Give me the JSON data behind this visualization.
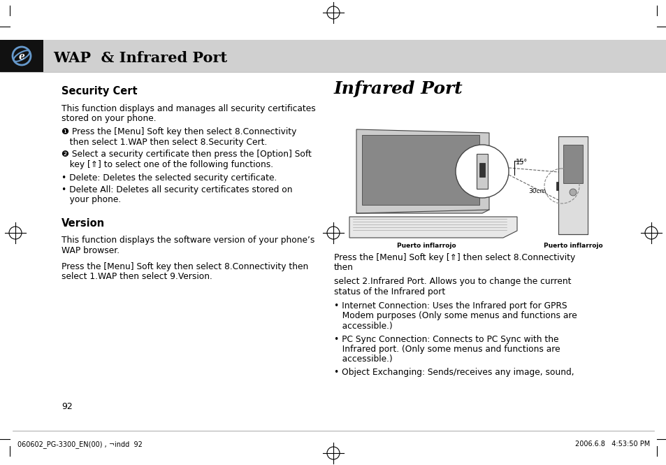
{
  "bg_color": "#ffffff",
  "header_bg": "#d0d0d0",
  "header_black_bg": "#111111",
  "title": "WAP  & Infrared Port",
  "footer_text_left": "060602_PG-3300_EN(00) , ¬indd  92",
  "footer_text_right": "2006.6.8   4:53:50 PM",
  "page_number": "92",
  "left_content": {
    "sec1_title": "Security Cert",
    "sec1_body_l1": "This function displays and manages all security certificates",
    "sec1_body_l2": "stored on your phone.",
    "sec1_bullet1_l1": "❶ Press the [Menu] Soft key then select 8.Connectivity",
    "sec1_bullet1_l2": "   then select 1.WAP then select 8.Security Cert.",
    "sec1_bullet2_l1": "❷ Select a security certificate then press the [Option] Soft",
    "sec1_bullet2_l2": "   key [⇑] to select one of the following functions.",
    "sec1_sub1": "• Delete: Deletes the selected security certificate.",
    "sec1_sub2_l1": "• Delete All: Deletes all security certificates stored on",
    "sec1_sub2_l2": "   your phone.",
    "sec2_title": "Version",
    "sec2_body1_l1": "This function displays the software version of your phone’s",
    "sec2_body1_l2": "WAP browser.",
    "sec2_body2_l1": "Press the [Menu] Soft key then select 8.Connectivity then",
    "sec2_body2_l2": "select 1.WAP then select 9.Version."
  },
  "right_content": {
    "sec_title": "Infrared Port",
    "body1_l1": "Press the [Menu] Soft key [⇑] then select 8.Connectivity",
    "body1_l2": "then",
    "body2_l1": "select 2.Infrared Port. Allows you to change the current",
    "body2_l2": "status of the Infrared port",
    "bullet1_l1": "• Internet Connection: Uses the Infrared port for GPRS",
    "bullet1_l2": "   Modem purposes (Only some menus and functions are",
    "bullet1_l3": "   accessible.)",
    "bullet2_l1": "• PC Sync Connection: Connects to PC Sync with the",
    "bullet2_l2": "   Infrared port. (Only some menus and functions are",
    "bullet2_l3": "   accessible.)",
    "bullet3_l1": "• Object Exchanging: Sends/receives any image, sound,"
  }
}
